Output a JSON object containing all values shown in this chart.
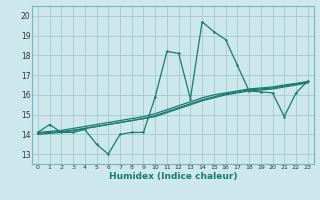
{
  "title": "",
  "xlabel": "Humidex (Indice chaleur)",
  "bg_color": "#cce8ec",
  "line_color": "#1a7a6e",
  "grid_color": "#aacdd4",
  "xlim": [
    -0.5,
    23.5
  ],
  "ylim": [
    12.5,
    20.5
  ],
  "xticks": [
    0,
    1,
    2,
    3,
    4,
    5,
    6,
    7,
    8,
    9,
    10,
    11,
    12,
    13,
    14,
    15,
    16,
    17,
    18,
    19,
    20,
    21,
    22,
    23
  ],
  "yticks": [
    13,
    14,
    15,
    16,
    17,
    18,
    19,
    20
  ],
  "line1_x": [
    0,
    1,
    2,
    3,
    4,
    5,
    6,
    7,
    8,
    9,
    10,
    11,
    12,
    13,
    14,
    15,
    16,
    17,
    18,
    19,
    20,
    21,
    22,
    23
  ],
  "line1_y": [
    14.1,
    14.5,
    14.1,
    14.1,
    14.25,
    13.5,
    13.0,
    14.0,
    14.1,
    14.1,
    15.9,
    18.2,
    18.1,
    15.8,
    19.7,
    19.2,
    18.8,
    17.5,
    16.2,
    16.15,
    16.1,
    14.9,
    16.1,
    16.7
  ],
  "line2_x": [
    0,
    1,
    2,
    3,
    4,
    5,
    6,
    7,
    8,
    9,
    10,
    11,
    12,
    13,
    14,
    15,
    16,
    17,
    18,
    19,
    20,
    21,
    22,
    23
  ],
  "line2_y": [
    14.05,
    14.1,
    14.15,
    14.2,
    14.3,
    14.4,
    14.5,
    14.6,
    14.7,
    14.8,
    14.95,
    15.15,
    15.35,
    15.55,
    15.75,
    15.9,
    16.05,
    16.15,
    16.25,
    16.3,
    16.35,
    16.45,
    16.55,
    16.65
  ],
  "line3_x": [
    0,
    1,
    2,
    3,
    4,
    5,
    6,
    7,
    8,
    9,
    10,
    11,
    12,
    13,
    14,
    15,
    16,
    17,
    18,
    19,
    20,
    21,
    22,
    23
  ],
  "line3_y": [
    14.0,
    14.05,
    14.1,
    14.2,
    14.3,
    14.4,
    14.5,
    14.6,
    14.7,
    14.8,
    14.9,
    15.1,
    15.3,
    15.5,
    15.7,
    15.85,
    16.0,
    16.1,
    16.2,
    16.25,
    16.3,
    16.4,
    16.5,
    16.6
  ],
  "line4_x": [
    0,
    1,
    2,
    3,
    4,
    5,
    6,
    7,
    8,
    9,
    10,
    11,
    12,
    13,
    14,
    15,
    16,
    17,
    18,
    19,
    20,
    21,
    22,
    23
  ],
  "line4_y": [
    14.1,
    14.15,
    14.2,
    14.3,
    14.4,
    14.5,
    14.6,
    14.7,
    14.8,
    14.9,
    15.05,
    15.25,
    15.45,
    15.65,
    15.85,
    16.0,
    16.1,
    16.2,
    16.3,
    16.35,
    16.4,
    16.5,
    16.58,
    16.68
  ]
}
